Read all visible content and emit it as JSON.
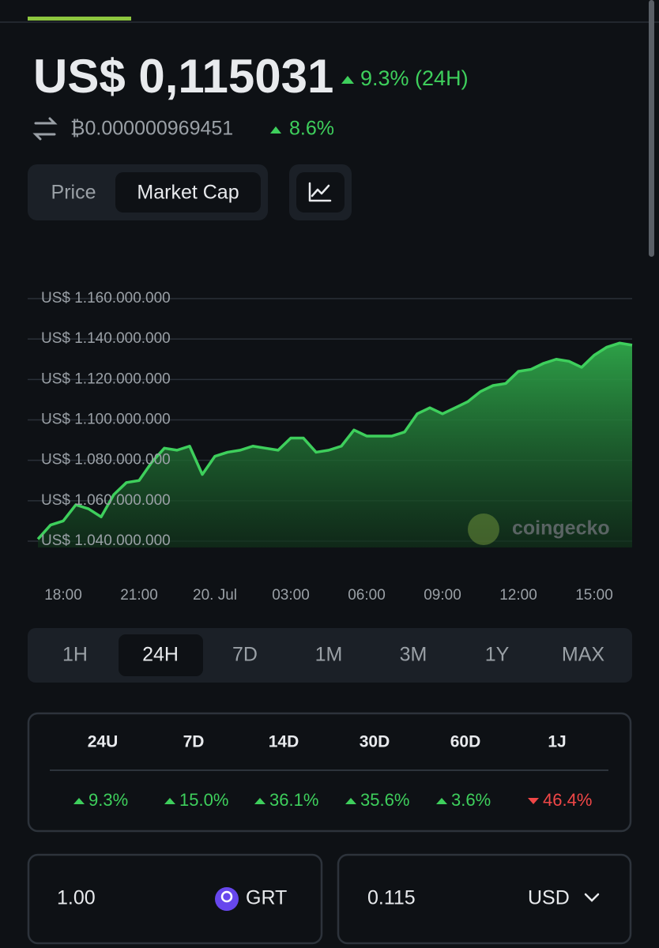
{
  "price": {
    "value": "US$ 0,115031",
    "change": "9.3% (24H)"
  },
  "btc": {
    "value": "₿0.000000969451",
    "change": "8.6%"
  },
  "toggle": [
    "Price",
    "Market Cap"
  ],
  "chart_data": {
    "type": "area",
    "categories": [
      null,
      "18:00",
      null,
      null,
      null,
      null,
      null,
      "21:00",
      null,
      null,
      null,
      null,
      null,
      "20. Jul",
      null,
      null,
      null,
      null,
      null,
      "03:00",
      null,
      null,
      null,
      null,
      null,
      "06:00",
      null,
      null,
      null,
      null,
      null,
      "09:00",
      null,
      null,
      null,
      null,
      null,
      "12:00",
      null,
      null,
      null,
      null,
      null,
      "15:00",
      null,
      null,
      null,
      null
    ],
    "values": [
      1041000000,
      1048000000,
      1050000000,
      1058000000,
      1056000000,
      1052000000,
      1063000000,
      1069000000,
      1070000000,
      1079000000,
      1086000000,
      1085000000,
      1087000000,
      1073000000,
      1082000000,
      1084000000,
      1085000000,
      1087000000,
      1086000000,
      1085000000,
      1091000000,
      1091000000,
      1084000000,
      1085000000,
      1087000000,
      1095000000,
      1092000000,
      1092000000,
      1092000000,
      1094000000,
      1103000000,
      1106000000,
      1103000000,
      1106000000,
      1109000000,
      1114000000,
      1117000000,
      1118000000,
      1124000000,
      1125000000,
      1128000000,
      1130000000,
      1129000000,
      1126000000,
      1132000000,
      1136000000,
      1138000000,
      1137000000
    ],
    "color": "#3ecf5c",
    "ylim": [
      1040000000,
      1160000000
    ],
    "yticks": [
      {
        "value": 1040000000,
        "label": "US$ 1.040.000.000"
      },
      {
        "value": 1060000000,
        "label": "US$ 1.060.000.000"
      },
      {
        "value": 1080000000,
        "label": "US$ 1.080.000.000"
      },
      {
        "value": 1100000000,
        "label": "US$ 1.100.000.000"
      },
      {
        "value": 1120000000,
        "label": "US$ 1.120.000.000"
      },
      {
        "value": 1140000000,
        "label": "US$ 1.140.000.000"
      },
      {
        "value": 1160000000,
        "label": "US$ 1.160.000.000"
      }
    ],
    "grid": true,
    "watermark": "coingecko"
  },
  "ranges": [
    "1H",
    "24H",
    "7D",
    "1M",
    "3M",
    "1Y",
    "MAX"
  ],
  "performance": {
    "periods": [
      "24U",
      "7D",
      "14D",
      "30D",
      "60D",
      "1J"
    ],
    "changes": [
      "9.3%",
      "15.0%",
      "36.1%",
      "35.6%",
      "3.6%",
      "46.4%"
    ],
    "trend": [
      "up",
      "up",
      "up",
      "up",
      "up",
      "down"
    ]
  },
  "converter": {
    "amount": "1.00",
    "token": "GRT",
    "result": "0.115",
    "currency": "USD"
  }
}
